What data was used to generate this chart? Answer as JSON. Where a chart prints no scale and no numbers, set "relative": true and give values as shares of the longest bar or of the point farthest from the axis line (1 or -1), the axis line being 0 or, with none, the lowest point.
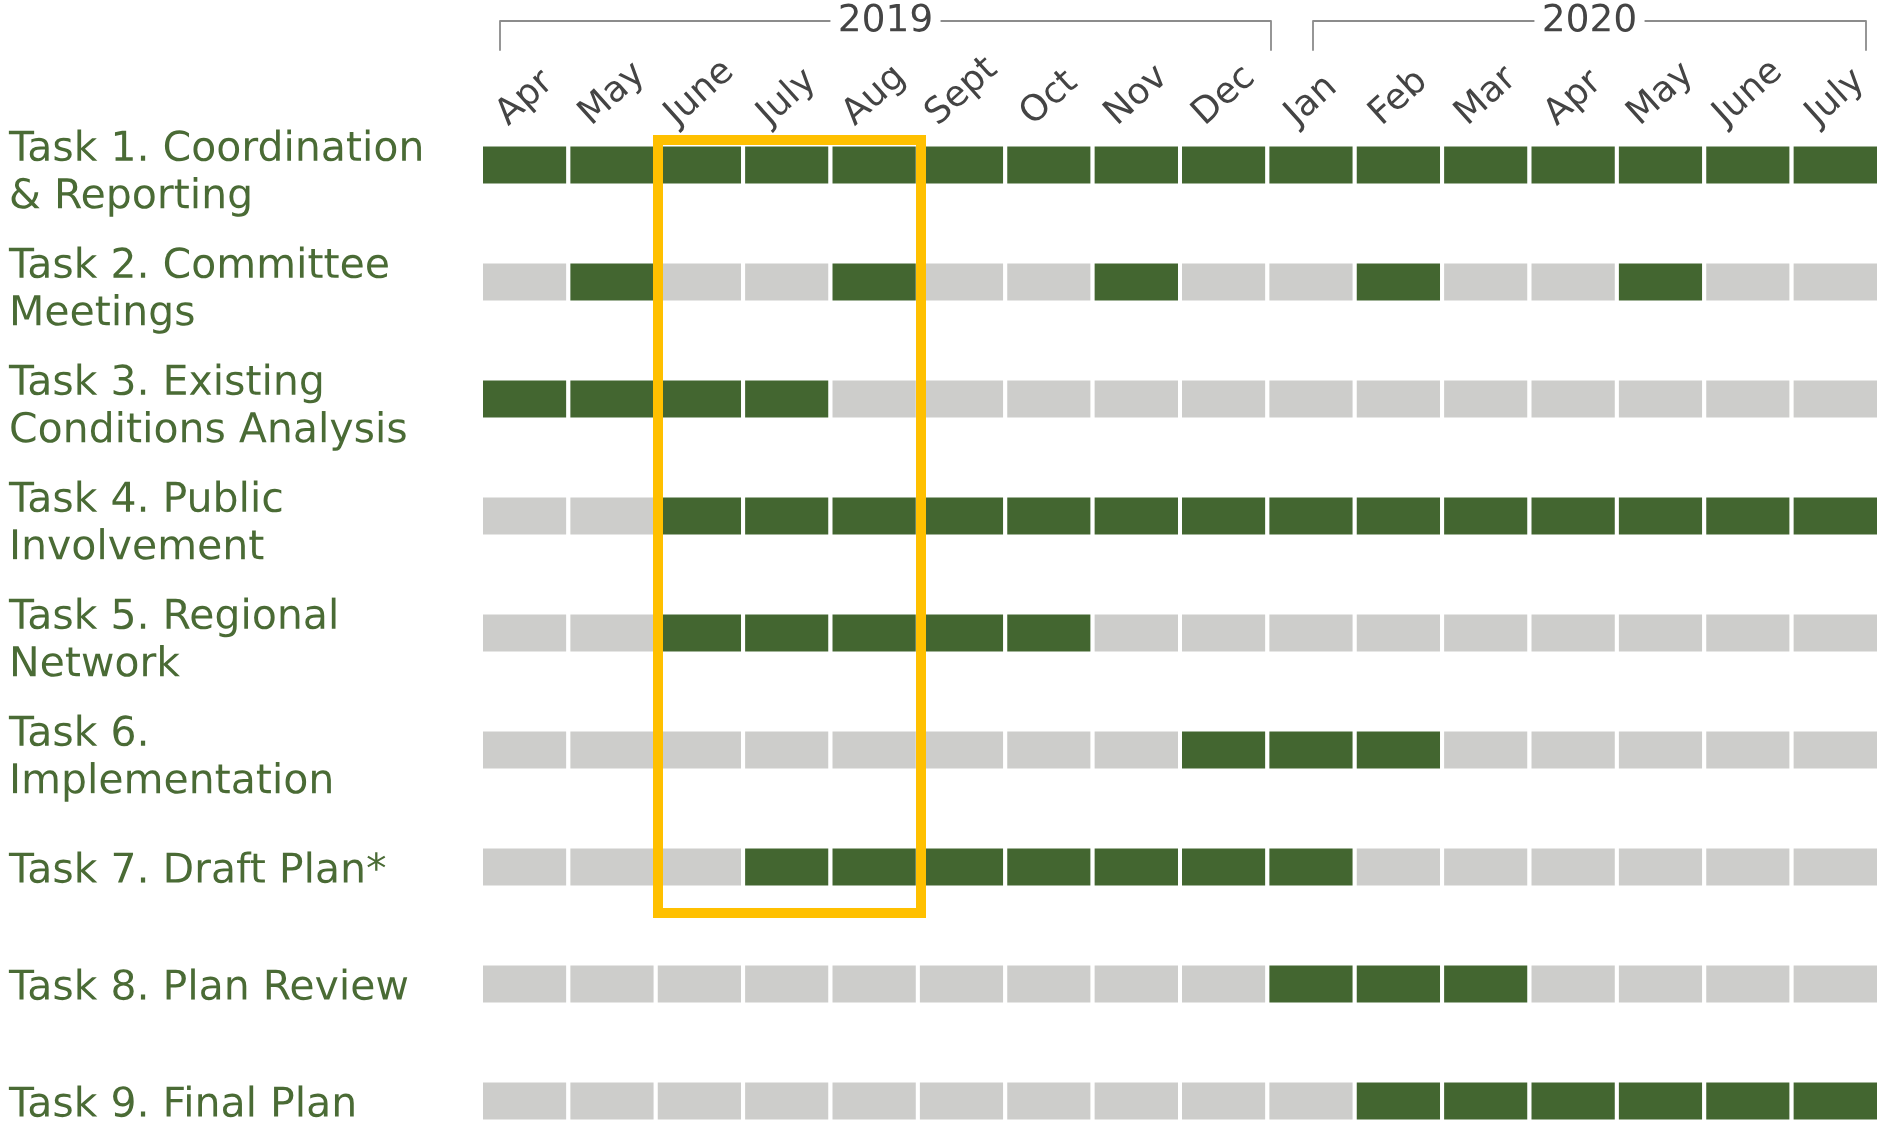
{
  "chart_data": {
    "type": "bar",
    "orientation": "horizontal",
    "stacked": true,
    "relative": true,
    "categories": [
      "Task 1. Coordination\n& Reporting",
      "Task 2. Committee\nMeetings",
      "Task 3. Existing\nConditions Analysis",
      "Task 4. Public\nInvolvement",
      "Task 5. Regional\nNetwork",
      "Task 6.\nImplementation",
      "Task 7. Draft Plan*",
      "Task 8. Plan Review",
      "Task 9. Final Plan"
    ],
    "series": [
      {
        "name": "Apr",
        "values": [
          0.0625,
          0.0625,
          0.0625,
          0.0625,
          0.0625,
          0.0625,
          0.0625,
          0.0625,
          0.0625
        ],
        "colors": [
          "#436630",
          "#cdcdcb",
          "#436630",
          "#cdcdcb",
          "#cdcdcb",
          "#cdcdcb",
          "#cdcdcb",
          "#cdcdcb",
          "#cdcdcb"
        ]
      },
      {
        "name": "May",
        "values": [
          0.0625,
          0.0625,
          0.0625,
          0.0625,
          0.0625,
          0.0625,
          0.0625,
          0.0625,
          0.0625
        ],
        "colors": [
          "#436630",
          "#436630",
          "#436630",
          "#cdcdcb",
          "#cdcdcb",
          "#cdcdcb",
          "#cdcdcb",
          "#cdcdcb",
          "#cdcdcb"
        ]
      },
      {
        "name": "June",
        "values": [
          0.0625,
          0.0625,
          0.0625,
          0.0625,
          0.0625,
          0.0625,
          0.0625,
          0.0625,
          0.0625
        ],
        "colors": [
          "#436630",
          "#cdcdcb",
          "#436630",
          "#436630",
          "#436630",
          "#cdcdcb",
          "#cdcdcb",
          "#cdcdcb",
          "#cdcdcb"
        ]
      },
      {
        "name": "July",
        "values": [
          0.0625,
          0.0625,
          0.0625,
          0.0625,
          0.0625,
          0.0625,
          0.0625,
          0.0625,
          0.0625
        ],
        "colors": [
          "#436630",
          "#cdcdcb",
          "#436630",
          "#436630",
          "#436630",
          "#cdcdcb",
          "#436630",
          "#cdcdcb",
          "#cdcdcb"
        ]
      },
      {
        "name": "Aug",
        "values": [
          0.0625,
          0.0625,
          0.0625,
          0.0625,
          0.0625,
          0.0625,
          0.0625,
          0.0625,
          0.0625
        ],
        "colors": [
          "#436630",
          "#436630",
          "#cdcdcb",
          "#436630",
          "#436630",
          "#cdcdcb",
          "#436630",
          "#cdcdcb",
          "#cdcdcb"
        ]
      },
      {
        "name": "Sept",
        "values": [
          0.0625,
          0.0625,
          0.0625,
          0.0625,
          0.0625,
          0.0625,
          0.0625,
          0.0625,
          0.0625
        ],
        "colors": [
          "#436630",
          "#cdcdcb",
          "#cdcdcb",
          "#436630",
          "#436630",
          "#cdcdcb",
          "#436630",
          "#cdcdcb",
          "#cdcdcb"
        ]
      },
      {
        "name": "Oct",
        "values": [
          0.0625,
          0.0625,
          0.0625,
          0.0625,
          0.0625,
          0.0625,
          0.0625,
          0.0625,
          0.0625
        ],
        "colors": [
          "#436630",
          "#cdcdcb",
          "#cdcdcb",
          "#436630",
          "#436630",
          "#cdcdcb",
          "#436630",
          "#cdcdcb",
          "#cdcdcb"
        ]
      },
      {
        "name": "Nov",
        "values": [
          0.0625,
          0.0625,
          0.0625,
          0.0625,
          0.0625,
          0.0625,
          0.0625,
          0.0625,
          0.0625
        ],
        "colors": [
          "#436630",
          "#436630",
          "#cdcdcb",
          "#436630",
          "#cdcdcb",
          "#cdcdcb",
          "#436630",
          "#cdcdcb",
          "#cdcdcb"
        ]
      },
      {
        "name": "Dec",
        "values": [
          0.0625,
          0.0625,
          0.0625,
          0.0625,
          0.0625,
          0.0625,
          0.0625,
          0.0625,
          0.0625
        ],
        "colors": [
          "#436630",
          "#cdcdcb",
          "#cdcdcb",
          "#436630",
          "#cdcdcb",
          "#436630",
          "#436630",
          "#cdcdcb",
          "#cdcdcb"
        ]
      },
      {
        "name": "Jan",
        "values": [
          0.0625,
          0.0625,
          0.0625,
          0.0625,
          0.0625,
          0.0625,
          0.0625,
          0.0625,
          0.0625
        ],
        "colors": [
          "#436630",
          "#cdcdcb",
          "#cdcdcb",
          "#436630",
          "#cdcdcb",
          "#436630",
          "#436630",
          "#436630",
          "#cdcdcb"
        ]
      },
      {
        "name": "Feb",
        "values": [
          0.0625,
          0.0625,
          0.0625,
          0.0625,
          0.0625,
          0.0625,
          0.0625,
          0.0625,
          0.0625
        ],
        "colors": [
          "#436630",
          "#436630",
          "#cdcdcb",
          "#436630",
          "#cdcdcb",
          "#436630",
          "#cdcdcb",
          "#436630",
          "#436630"
        ]
      },
      {
        "name": "Mar",
        "values": [
          0.0625,
          0.0625,
          0.0625,
          0.0625,
          0.0625,
          0.0625,
          0.0625,
          0.0625,
          0.0625
        ],
        "colors": [
          "#436630",
          "#cdcdcb",
          "#cdcdcb",
          "#436630",
          "#cdcdcb",
          "#cdcdcb",
          "#cdcdcb",
          "#436630",
          "#436630"
        ]
      },
      {
        "name": "Apr",
        "values": [
          0.0625,
          0.0625,
          0.0625,
          0.0625,
          0.0625,
          0.0625,
          0.0625,
          0.0625,
          0.0625
        ],
        "colors": [
          "#436630",
          "#cdcdcb",
          "#cdcdcb",
          "#436630",
          "#cdcdcb",
          "#cdcdcb",
          "#cdcdcb",
          "#cdcdcb",
          "#436630"
        ]
      },
      {
        "name": "May",
        "values": [
          0.0625,
          0.0625,
          0.0625,
          0.0625,
          0.0625,
          0.0625,
          0.0625,
          0.0625,
          0.0625
        ],
        "colors": [
          "#436630",
          "#436630",
          "#cdcdcb",
          "#436630",
          "#cdcdcb",
          "#cdcdcb",
          "#cdcdcb",
          "#cdcdcb",
          "#436630"
        ]
      },
      {
        "name": "June",
        "values": [
          0.0625,
          0.0625,
          0.0625,
          0.0625,
          0.0625,
          0.0625,
          0.0625,
          0.0625,
          0.0625
        ],
        "colors": [
          "#436630",
          "#cdcdcb",
          "#cdcdcb",
          "#436630",
          "#cdcdcb",
          "#cdcdcb",
          "#cdcdcb",
          "#cdcdcb",
          "#436630"
        ]
      },
      {
        "name": "July",
        "values": [
          0.0625,
          0.0625,
          0.0625,
          0.0625,
          0.0625,
          0.0625,
          0.0625,
          0.0625,
          0.0625
        ],
        "colors": [
          "#436630",
          "#cdcdcb",
          "#cdcdcb",
          "#436630",
          "#cdcdcb",
          "#cdcdcb",
          "#cdcdcb",
          "#cdcdcb",
          "#436630"
        ]
      }
    ],
    "annotations": [
      "2019",
      "2020"
    ]
  }
}
